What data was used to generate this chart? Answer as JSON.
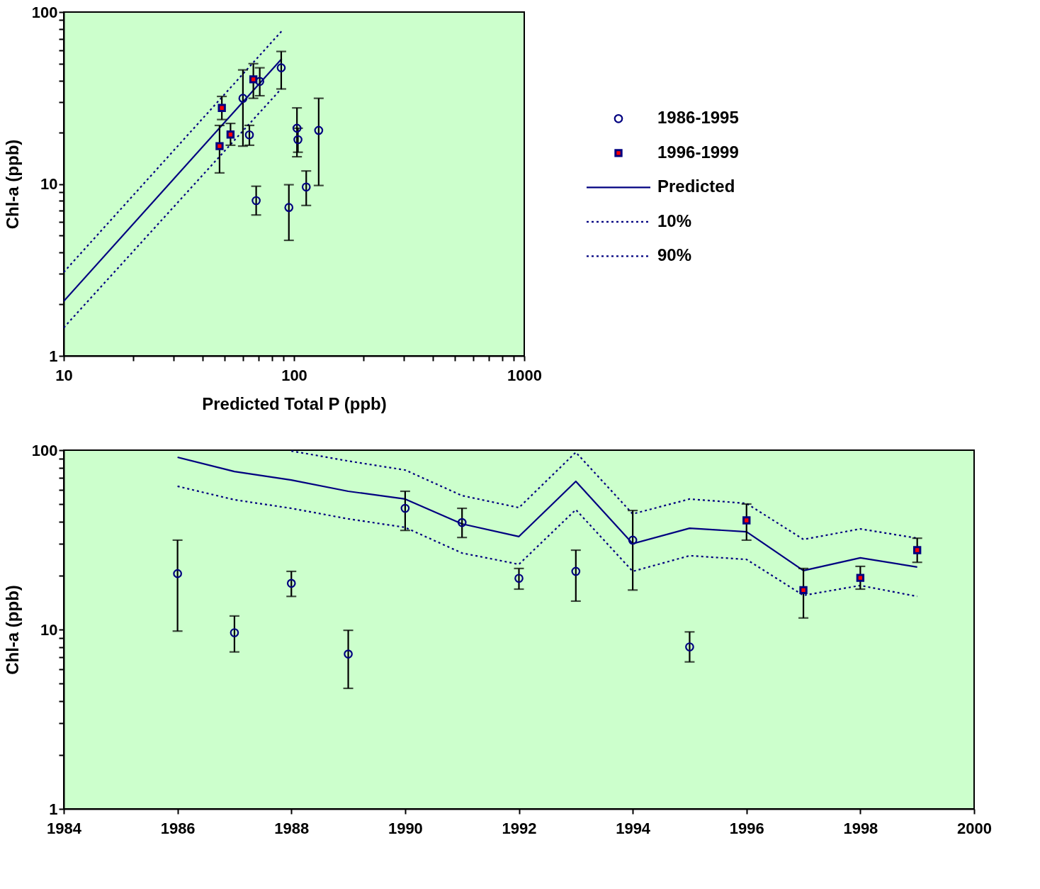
{
  "chart_data": [
    {
      "type": "scatter",
      "log": "xy",
      "xlabel": "Predicted Total P (ppb)",
      "ylabel": "Chl-a (ppb)",
      "xlim": [
        10,
        1000
      ],
      "ylim": [
        1,
        100
      ],
      "xticks": [
        10,
        {
          "value": 20,
          "label": null
        },
        {
          "value": 30,
          "label": null
        },
        {
          "value": 40,
          "label": null
        },
        {
          "value": 50,
          "label": null
        },
        {
          "value": 60,
          "label": null
        },
        {
          "value": 70,
          "label": null
        },
        {
          "value": 80,
          "label": null
        },
        {
          "value": 90,
          "label": null
        },
        100,
        {
          "value": 200,
          "label": null
        },
        {
          "value": 300,
          "label": null
        },
        {
          "value": 400,
          "label": null
        },
        {
          "value": 500,
          "label": null
        },
        {
          "value": 600,
          "label": null
        },
        {
          "value": 700,
          "label": null
        },
        {
          "value": 800,
          "label": null
        },
        {
          "value": 900,
          "label": null
        },
        1000
      ],
      "yticks": [
        1,
        {
          "value": 2,
          "label": null
        },
        {
          "value": 3,
          "label": null
        },
        {
          "value": 4,
          "label": null
        },
        {
          "value": 5,
          "label": null
        },
        {
          "value": 6,
          "label": null
        },
        {
          "value": 7,
          "label": null
        },
        {
          "value": 8,
          "label": null
        },
        {
          "value": 9,
          "label": null
        },
        10,
        {
          "value": 20,
          "label": null
        },
        {
          "value": 30,
          "label": null
        },
        {
          "value": 40,
          "label": null
        },
        {
          "value": 50,
          "label": null
        },
        {
          "value": 60,
          "label": null
        },
        {
          "value": 70,
          "label": null
        },
        {
          "value": 80,
          "label": null
        },
        {
          "value": 90,
          "label": null
        },
        100
      ],
      "grid": false,
      "legend": "right",
      "series": [
        {
          "name": "1986-1995",
          "type": "scatter",
          "marker": "circle",
          "color": "#000080",
          "x": [
            128,
            113,
            104,
            95,
            88,
            71,
            64,
            103,
            60,
            68.5
          ],
          "values": [
            20.5,
            9.6,
            18.1,
            7.3,
            47.4,
            39.5,
            19.3,
            21.1,
            31.5,
            8.0
          ],
          "errors": [
            [
              9.8,
              31.5
            ],
            [
              7.5,
              11.9
            ],
            [
              15.3,
              21.1
            ],
            [
              4.7,
              9.9
            ],
            [
              35.7,
              59
            ],
            [
              32.6,
              47.4
            ],
            [
              16.8,
              21.9
            ],
            [
              14.4,
              27.7
            ],
            [
              16.6,
              46.1
            ],
            [
              6.6,
              9.7
            ]
          ]
        },
        {
          "name": "1996-1999",
          "type": "scatter",
          "marker": "square",
          "color": "#ff0000",
          "x": [
            66.6,
            47.5,
            53,
            48.6
          ],
          "values": [
            40.6,
            16.6,
            19.4,
            27.7
          ],
          "errors": [
            [
              31.5,
              50.1
            ],
            [
              11.6,
              21.9
            ],
            [
              16.8,
              22.5
            ],
            [
              23.7,
              32.3
            ]
          ]
        },
        {
          "name": "Predicted",
          "type": "line",
          "line_style": "solid",
          "color": "#000080",
          "x": [
            10,
            88.4
          ],
          "values": [
            2.08,
            53.4
          ]
        },
        {
          "name": "10%",
          "type": "line",
          "line_style": "dotted",
          "color": "#000080",
          "x": [
            10,
            88.4
          ],
          "values": [
            1.46,
            36
          ]
        },
        {
          "name": "90%",
          "type": "line",
          "line_style": "dotted",
          "color": "#000080",
          "x": [
            10,
            88.4
          ],
          "values": [
            3.07,
            77.5
          ]
        }
      ]
    },
    {
      "type": "scatter",
      "log": "y",
      "ylabel": "Chl-a (ppb)",
      "xlim": [
        1984,
        2000
      ],
      "ylim": [
        1,
        100
      ],
      "xticks": [
        1984,
        1986,
        1988,
        1990,
        1992,
        1994,
        1996,
        1998,
        2000
      ],
      "yticks": [
        1,
        {
          "value": 2,
          "label": null
        },
        {
          "value": 3,
          "label": null
        },
        {
          "value": 4,
          "label": null
        },
        {
          "value": 5,
          "label": null
        },
        {
          "value": 6,
          "label": null
        },
        {
          "value": 7,
          "label": null
        },
        {
          "value": 8,
          "label": null
        },
        {
          "value": 9,
          "label": null
        },
        10,
        {
          "value": 20,
          "label": null
        },
        {
          "value": 30,
          "label": null
        },
        {
          "value": 40,
          "label": null
        },
        {
          "value": 50,
          "label": null
        },
        {
          "value": 60,
          "label": null
        },
        {
          "value": 70,
          "label": null
        },
        {
          "value": 80,
          "label": null
        },
        {
          "value": 90,
          "label": null
        },
        100
      ],
      "grid": false,
      "legend": false,
      "series": [
        {
          "type": "scatter",
          "marker": "circle",
          "color": "#000080",
          "x": [
            1986,
            1987,
            1988,
            1989,
            1990,
            1991,
            1992,
            1993,
            1994,
            1995
          ],
          "values": [
            20.5,
            9.6,
            18.1,
            7.3,
            47.4,
            39.5,
            19.3,
            21.1,
            31.5,
            8.0
          ],
          "errors": [
            [
              9.8,
              31.5
            ],
            [
              7.5,
              11.9
            ],
            [
              15.3,
              21.1
            ],
            [
              4.7,
              9.9
            ],
            [
              35.7,
              59
            ],
            [
              32.6,
              47.4
            ],
            [
              16.8,
              21.9
            ],
            [
              14.4,
              27.7
            ],
            [
              16.6,
              46.1
            ],
            [
              6.6,
              9.7
            ]
          ]
        },
        {
          "type": "scatter",
          "marker": "square",
          "color": "#ff0000",
          "x": [
            1996,
            1997,
            1998,
            1999
          ],
          "values": [
            40.6,
            16.6,
            19.4,
            27.7
          ],
          "errors": [
            [
              31.5,
              50.1
            ],
            [
              11.6,
              21.9
            ],
            [
              16.8,
              22.5
            ],
            [
              23.7,
              32.3
            ]
          ]
        },
        {
          "type": "line",
          "line_style": "solid",
          "color": "#000080",
          "x": [
            1986,
            1987,
            1988,
            1989,
            1990,
            1991,
            1992,
            1993,
            1994,
            1995,
            1996,
            1997,
            1998,
            1999
          ],
          "values": [
            91.3,
            76,
            68.2,
            59,
            53.4,
            38.8,
            33,
            67,
            30.1,
            36.7,
            35.1,
            21.3,
            25.1,
            22.3
          ]
        },
        {
          "type": "line",
          "line_style": "dotted",
          "color": "#000080",
          "x": [
            1986,
            1987,
            1988,
            1989,
            1990,
            1991,
            1992,
            1993,
            1994,
            1995,
            1996,
            1997,
            1998,
            1999
          ],
          "values": [
            62.9,
            52.9,
            47.4,
            41.4,
            37.1,
            26.7,
            23.1,
            46.6,
            21.1,
            25.8,
            24.6,
            15.5,
            17.6,
            15.3
          ]
        },
        {
          "type": "line",
          "line_style": "dotted",
          "color": "#000080",
          "x": [
            1988,
            1989,
            1990,
            1991,
            1992,
            1993,
            1994,
            1995,
            1996,
            1997,
            1998,
            1999
          ],
          "values": [
            99,
            87,
            77.5,
            55.8,
            47.8,
            97.3,
            44.1,
            53.4,
            50.5,
            31.8,
            36.4,
            32.3
          ]
        }
      ]
    }
  ]
}
